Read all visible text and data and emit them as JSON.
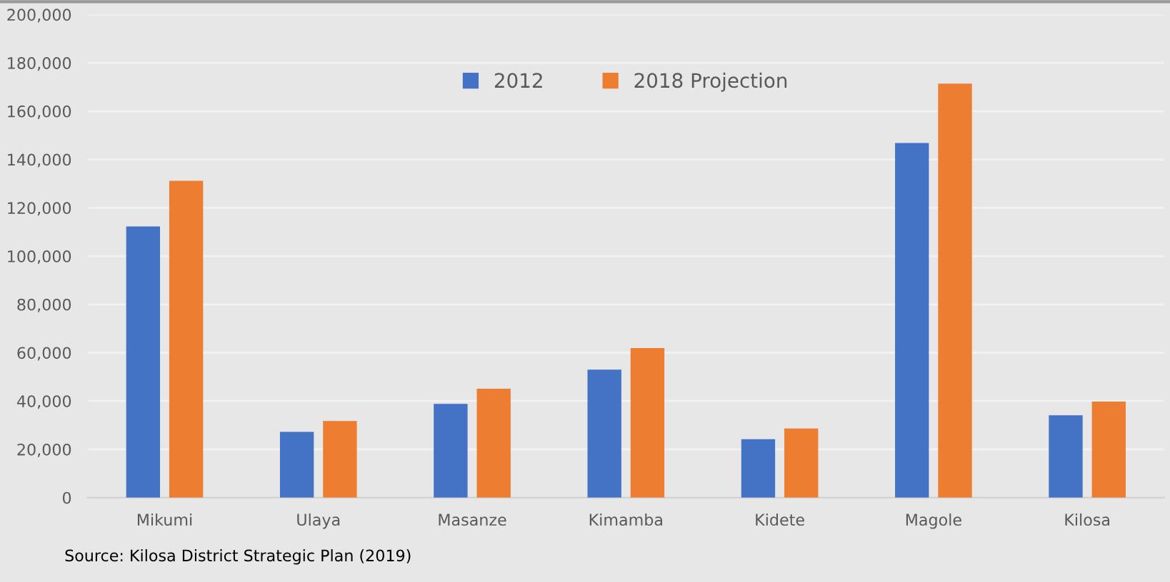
{
  "chart_data": {
    "type": "bar",
    "categories": [
      "Mikumi",
      "Ulaya",
      "Masanze",
      "Kimamba",
      "Kidete",
      "Magole",
      "Kilosa"
    ],
    "series": [
      {
        "name": "2012",
        "color": "#4472c4",
        "values": [
          112300,
          27200,
          38800,
          53000,
          24200,
          146800,
          34100
        ]
      },
      {
        "name": "2018 Projection",
        "color": "#ed7d31",
        "values": [
          131200,
          31700,
          45100,
          61900,
          28600,
          171400,
          39800
        ]
      }
    ],
    "ylim": [
      0,
      200000
    ],
    "yticks": [
      {
        "value": 0,
        "label": "0"
      },
      {
        "value": 20000,
        "label": "20,000"
      },
      {
        "value": 40000,
        "label": "40,000"
      },
      {
        "value": 60000,
        "label": "60,000"
      },
      {
        "value": 80000,
        "label": "80,000"
      },
      {
        "value": 100000,
        "label": "100,000"
      },
      {
        "value": 120000,
        "label": "120,000"
      },
      {
        "value": 140000,
        "label": "140,000"
      },
      {
        "value": 160000,
        "label": "160,000"
      },
      {
        "value": 180000,
        "label": "180,000"
      },
      {
        "value": 200000,
        "label": "200,000"
      }
    ],
    "grid": "y",
    "legend": "top",
    "annotations": [
      "Source: Kilosa District Strategic Plan (2019)"
    ]
  }
}
